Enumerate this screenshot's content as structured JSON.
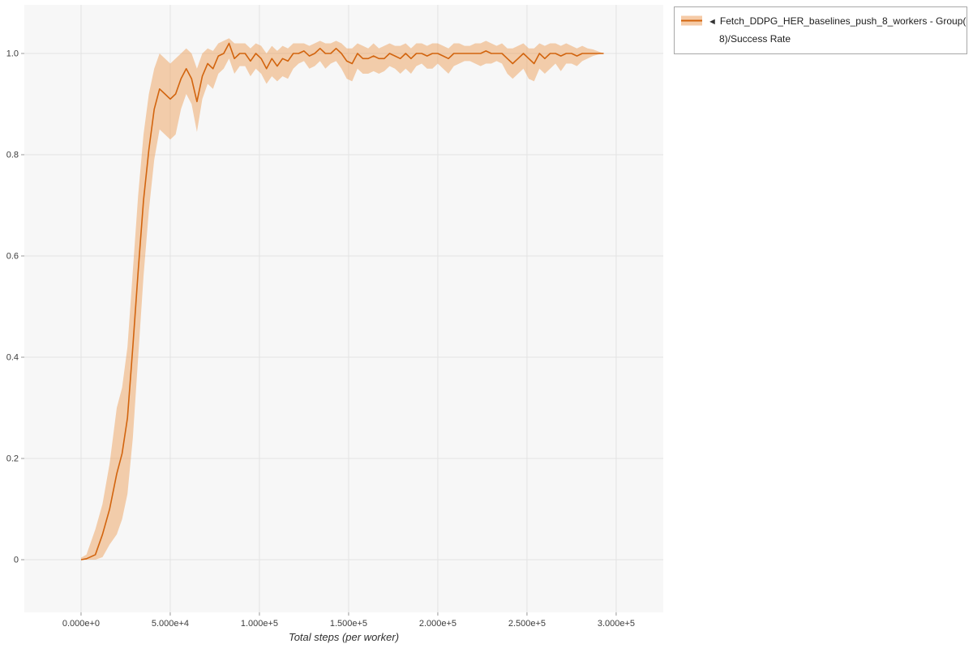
{
  "colors": {
    "line": "#d2640e",
    "band": "#eda15e",
    "plot_bg": "#f7f7f7",
    "grid": "#e3e3e3",
    "tick_text": "#3c3c3c",
    "legend_border": "#a8a8a8"
  },
  "legend": {
    "marker_glyph": "◄",
    "label_line1": "Fetch_DDPG_HER_baselines_push_8_workers - Group(",
    "label_line2": "8)/Success Rate"
  },
  "chart_data": {
    "type": "line",
    "title": "",
    "xlabel": "Total steps (per worker)",
    "ylabel": "",
    "grid": true,
    "legend_position": "top-right",
    "xlim": [
      -31800,
      326400
    ],
    "ylim": [
      -0.104,
      1.096
    ],
    "x_ticks": [
      0,
      50000,
      100000,
      150000,
      200000,
      250000,
      300000
    ],
    "x_tick_labels": [
      "0.000e+0",
      "5.000e+4",
      "1.000e+5",
      "1.500e+5",
      "2.000e+5",
      "2.500e+5",
      "3.000e+5"
    ],
    "y_ticks": [
      0,
      0.2,
      0.4,
      0.6,
      0.8,
      1.0
    ],
    "y_tick_labels": [
      "0",
      "0.2",
      "0.4",
      "0.6",
      "0.8",
      "1.0"
    ],
    "series": [
      {
        "name": "Fetch_DDPG_HER_baselines_push_8_workers - Group(8)/Success Rate",
        "marker": "left-triangle",
        "points_format": [
          "x",
          "lo",
          "mean",
          "hi"
        ],
        "points": [
          [
            0,
            0,
            0,
            0.004
          ],
          [
            3000,
            0,
            0.002,
            0.01
          ],
          [
            8000,
            0,
            0.01,
            0.06
          ],
          [
            12000,
            0.005,
            0.05,
            0.11
          ],
          [
            16000,
            0.03,
            0.1,
            0.19
          ],
          [
            20000,
            0.05,
            0.17,
            0.3
          ],
          [
            23000,
            0.08,
            0.21,
            0.34
          ],
          [
            26000,
            0.13,
            0.28,
            0.42
          ],
          [
            29000,
            0.24,
            0.42,
            0.57
          ],
          [
            32000,
            0.4,
            0.57,
            0.72
          ],
          [
            35000,
            0.56,
            0.71,
            0.84
          ],
          [
            38000,
            0.69,
            0.81,
            0.92
          ],
          [
            41000,
            0.79,
            0.89,
            0.97
          ],
          [
            44000,
            0.85,
            0.93,
            1.0
          ],
          [
            47000,
            0.84,
            0.92,
            0.99
          ],
          [
            50000,
            0.83,
            0.91,
            0.98
          ],
          [
            53000,
            0.84,
            0.92,
            0.99
          ],
          [
            56000,
            0.89,
            0.95,
            1.0
          ],
          [
            59000,
            0.92,
            0.97,
            1.01
          ],
          [
            62000,
            0.9,
            0.95,
            1.0
          ],
          [
            65000,
            0.845,
            0.905,
            0.97
          ],
          [
            68000,
            0.91,
            0.955,
            1.0
          ],
          [
            71000,
            0.94,
            0.98,
            1.01
          ],
          [
            74000,
            0.93,
            0.97,
            1.005
          ],
          [
            77000,
            0.96,
            0.995,
            1.02
          ],
          [
            80000,
            0.97,
            1.0,
            1.025
          ],
          [
            83000,
            0.99,
            1.02,
            1.03
          ],
          [
            86000,
            0.96,
            0.99,
            1.02
          ],
          [
            89000,
            0.975,
            1.0,
            1.02
          ],
          [
            92000,
            0.975,
            1.0,
            1.02
          ],
          [
            95000,
            0.955,
            0.985,
            1.01
          ],
          [
            98000,
            0.97,
            1.0,
            1.02
          ],
          [
            101000,
            0.96,
            0.99,
            1.015
          ],
          [
            104000,
            0.94,
            0.97,
            1.0
          ],
          [
            107000,
            0.955,
            0.99,
            1.015
          ],
          [
            110000,
            0.945,
            0.975,
            1.005
          ],
          [
            113000,
            0.955,
            0.99,
            1.015
          ],
          [
            116000,
            0.95,
            0.985,
            1.01
          ],
          [
            119000,
            0.97,
            1.0,
            1.02
          ],
          [
            122000,
            0.98,
            1.0,
            1.02
          ],
          [
            125000,
            0.985,
            1.005,
            1.02
          ],
          [
            128000,
            0.97,
            0.995,
            1.015
          ],
          [
            131000,
            0.975,
            1.0,
            1.02
          ],
          [
            134000,
            0.985,
            1.01,
            1.025
          ],
          [
            137000,
            0.97,
            1.0,
            1.02
          ],
          [
            140000,
            0.98,
            1.0,
            1.02
          ],
          [
            143000,
            0.985,
            1.01,
            1.025
          ],
          [
            146000,
            0.97,
            1.0,
            1.02
          ],
          [
            149000,
            0.95,
            0.985,
            1.01
          ],
          [
            152000,
            0.945,
            0.98,
            1.01
          ],
          [
            155000,
            0.97,
            1.0,
            1.02
          ],
          [
            158000,
            0.96,
            0.99,
            1.015
          ],
          [
            161000,
            0.96,
            0.99,
            1.01
          ],
          [
            164000,
            0.965,
            0.995,
            1.02
          ],
          [
            167000,
            0.96,
            0.99,
            1.01
          ],
          [
            170000,
            0.965,
            0.99,
            1.015
          ],
          [
            173000,
            0.975,
            1.0,
            1.02
          ],
          [
            176000,
            0.97,
            0.995,
            1.015
          ],
          [
            179000,
            0.96,
            0.99,
            1.015
          ],
          [
            182000,
            0.97,
            1.0,
            1.02
          ],
          [
            185000,
            0.96,
            0.99,
            1.01
          ],
          [
            188000,
            0.975,
            1.0,
            1.02
          ],
          [
            191000,
            0.98,
            1.0,
            1.02
          ],
          [
            194000,
            0.97,
            0.995,
            1.015
          ],
          [
            197000,
            0.97,
            1.0,
            1.02
          ],
          [
            200000,
            0.98,
            1.0,
            1.02
          ],
          [
            203000,
            0.97,
            0.995,
            1.015
          ],
          [
            206000,
            0.96,
            0.99,
            1.01
          ],
          [
            209000,
            0.975,
            1.0,
            1.02
          ],
          [
            212000,
            0.98,
            1.0,
            1.02
          ],
          [
            215000,
            0.985,
            1.0,
            1.015
          ],
          [
            218000,
            0.985,
            1.0,
            1.015
          ],
          [
            221000,
            0.98,
            1.0,
            1.02
          ],
          [
            224000,
            0.975,
            1.0,
            1.02
          ],
          [
            227000,
            0.98,
            1.005,
            1.025
          ],
          [
            230000,
            0.98,
            1.0,
            1.02
          ],
          [
            233000,
            0.985,
            1.0,
            1.015
          ],
          [
            236000,
            0.98,
            1.0,
            1.02
          ],
          [
            239000,
            0.96,
            0.99,
            1.01
          ],
          [
            242000,
            0.95,
            0.98,
            1.01
          ],
          [
            245000,
            0.96,
            0.99,
            1.015
          ],
          [
            248000,
            0.97,
            1.0,
            1.02
          ],
          [
            251000,
            0.95,
            0.99,
            1.01
          ],
          [
            254000,
            0.945,
            0.98,
            1.01
          ],
          [
            257000,
            0.97,
            1.0,
            1.02
          ],
          [
            260000,
            0.96,
            0.99,
            1.015
          ],
          [
            263000,
            0.97,
            1.0,
            1.02
          ],
          [
            266000,
            0.98,
            1.0,
            1.02
          ],
          [
            269000,
            0.965,
            0.995,
            1.015
          ],
          [
            272000,
            0.98,
            1.0,
            1.02
          ],
          [
            275000,
            0.98,
            1.0,
            1.015
          ],
          [
            278000,
            0.975,
            0.995,
            1.01
          ],
          [
            281000,
            0.985,
            1.0,
            1.015
          ],
          [
            284000,
            0.99,
            1.0,
            1.01
          ],
          [
            287000,
            0.995,
            1.0,
            1.008
          ],
          [
            290000,
            0.998,
            1.0,
            1.004
          ],
          [
            293000,
            1.0,
            1.0,
            1.0
          ]
        ]
      }
    ]
  }
}
